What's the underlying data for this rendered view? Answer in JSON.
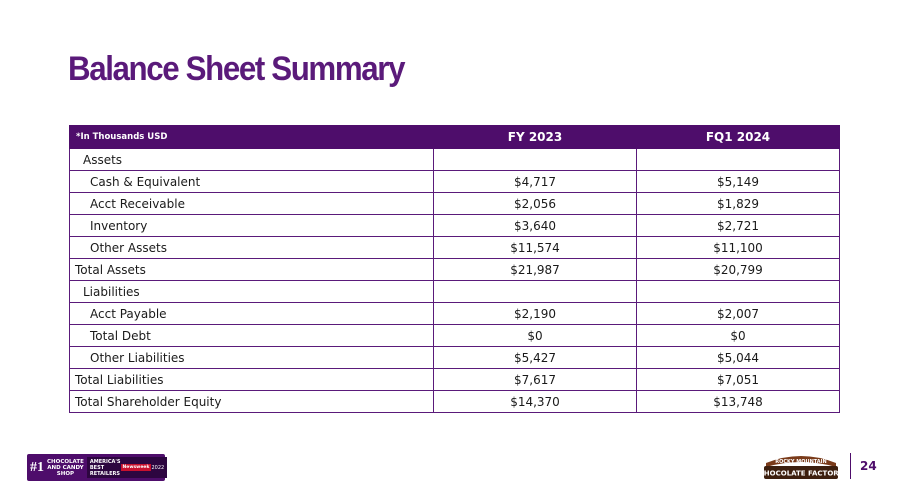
{
  "title": "Balance Sheet Summary",
  "table": {
    "units_label": "*In Thousands USD",
    "columns": [
      "FY 2023",
      "FQ1 2024"
    ],
    "rows": [
      {
        "label": "Assets",
        "kind": "section",
        "values": [
          "",
          ""
        ]
      },
      {
        "label": "Cash & Equivalent",
        "kind": "sub",
        "values": [
          "$4,717",
          "$5,149"
        ]
      },
      {
        "label": "Acct Receivable",
        "kind": "sub",
        "values": [
          "$2,056",
          "$1,829"
        ]
      },
      {
        "label": "Inventory",
        "kind": "sub",
        "values": [
          "$3,640",
          "$2,721"
        ]
      },
      {
        "label": "Other Assets",
        "kind": "sub",
        "values": [
          "$11,574",
          "$11,100"
        ]
      },
      {
        "label": "Total Assets",
        "kind": "total",
        "values": [
          "$21,987",
          "$20,799"
        ]
      },
      {
        "label": "Liabilities",
        "kind": "section",
        "values": [
          "",
          ""
        ]
      },
      {
        "label": "Acct Payable",
        "kind": "sub",
        "values": [
          "$2,190",
          "$2,007"
        ]
      },
      {
        "label": "Total Debt",
        "kind": "sub",
        "values": [
          "$0",
          "$0"
        ]
      },
      {
        "label": "Other Liabilities",
        "kind": "sub",
        "values": [
          "$5,427",
          "$5,044"
        ]
      },
      {
        "label": "Total Liabilities",
        "kind": "total",
        "values": [
          "$7,617",
          "$7,051"
        ]
      },
      {
        "label": "Total Shareholder Equity",
        "kind": "total",
        "values": [
          "$14,370",
          "$13,748"
        ]
      }
    ]
  },
  "footer": {
    "badge_rank": "#1",
    "badge_text": "CHOCOLATE AND CANDY SHOP",
    "award_text": "AMERICA'S BEST RETAILERS",
    "award_publisher": "Newsweek",
    "award_year": "2022",
    "logo_top": "ROCKY MOUNTAIN",
    "logo_bottom": "CHOCOLATE FACTORY",
    "page_number": "24"
  },
  "colors": {
    "brand": "#4e0d6b",
    "title": "#5a1a7a"
  }
}
